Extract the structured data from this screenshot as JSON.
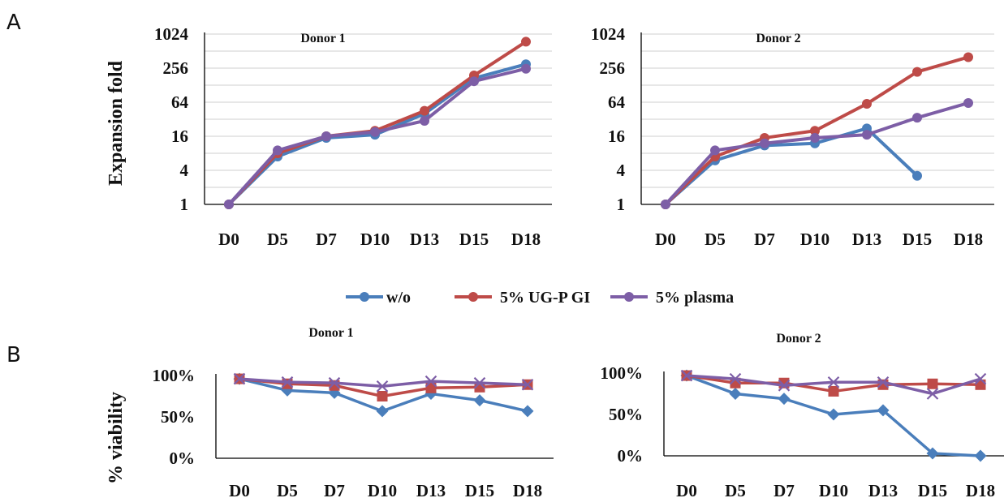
{
  "panel_labels": [
    "A",
    "B"
  ],
  "colors": {
    "w/o": "#4a7ebb",
    "5% UG-P GI": "#be4b48",
    "5% plasma": "#7d5ea6",
    "grid": "#cfcfcf"
  },
  "legend": [
    {
      "name": "w/o",
      "color": "#4a7ebb"
    },
    {
      "name": "5% UG-P GI",
      "color": "#be4b48"
    },
    {
      "name": "5% plasma",
      "color": "#7d5ea6"
    }
  ],
  "chart_data": [
    {
      "id": "A-donor1",
      "type": "line",
      "title": "Donor 1",
      "ylabel": "Expansion fold",
      "xlabel": "",
      "yscale": "log2",
      "categories": [
        "D0",
        "D5",
        "D7",
        "D10",
        "D13",
        "D15",
        "D18"
      ],
      "yticks": [
        1,
        4,
        16,
        64,
        256,
        1024
      ],
      "ytick_labels": [
        "1",
        "4",
        "16",
        "64",
        "256",
        "1024"
      ],
      "ylim": [
        1,
        1024
      ],
      "grid": true,
      "marker": "circle",
      "series": [
        {
          "name": "w/o",
          "values": [
            1,
            7,
            15,
            17,
            40,
            170,
            300
          ]
        },
        {
          "name": "5% UG-P GI",
          "values": [
            1,
            8,
            16,
            20,
            45,
            190,
            750
          ]
        },
        {
          "name": "5% plasma",
          "values": [
            1,
            9,
            16,
            19,
            30,
            150,
            250
          ]
        }
      ]
    },
    {
      "id": "A-donor2",
      "type": "line",
      "title": "Donor 2",
      "ylabel": "",
      "xlabel": "",
      "yscale": "log2",
      "categories": [
        "D0",
        "D5",
        "D7",
        "D10",
        "D13",
        "D15",
        "D18"
      ],
      "yticks": [
        1,
        4,
        16,
        64,
        256,
        1024
      ],
      "ytick_labels": [
        "1",
        "4",
        "16",
        "64",
        "256",
        "1024"
      ],
      "ylim": [
        1,
        1024
      ],
      "grid": true,
      "marker": "circle",
      "series": [
        {
          "name": "w/o",
          "values": [
            1,
            6,
            11,
            12,
            22,
            3.2,
            null
          ]
        },
        {
          "name": "5% UG-P GI",
          "values": [
            1,
            7,
            15,
            20,
            60,
            220,
            400
          ]
        },
        {
          "name": "5% plasma",
          "values": [
            1,
            9,
            12,
            15,
            17,
            34,
            62
          ]
        }
      ]
    },
    {
      "id": "B-donor1",
      "type": "line",
      "title": "Donor 1",
      "ylabel": "% viability",
      "xlabel": "",
      "categories": [
        "D0",
        "D5",
        "D7",
        "D10",
        "D13",
        "D15",
        "D18"
      ],
      "yticks": [
        0,
        50,
        100
      ],
      "ytick_labels": [
        "0%",
        "50%",
        "100%"
      ],
      "ylim": [
        0,
        100
      ],
      "grid": false,
      "series": [
        {
          "name": "w/o",
          "marker": "diamond",
          "values": [
            96,
            82,
            79,
            57,
            78,
            70,
            57
          ]
        },
        {
          "name": "5% UG-P GI",
          "marker": "square",
          "values": [
            96,
            90,
            88,
            75,
            85,
            86,
            89
          ]
        },
        {
          "name": "5% plasma",
          "marker": "x",
          "values": [
            96,
            92,
            91,
            87,
            93,
            91,
            89
          ]
        }
      ]
    },
    {
      "id": "B-donor2",
      "type": "line",
      "title": "Donor 2",
      "ylabel": "",
      "xlabel": "",
      "categories": [
        "D0",
        "D5",
        "D7",
        "D10",
        "D13",
        "D15",
        "D18"
      ],
      "yticks": [
        0,
        50,
        100
      ],
      "ytick_labels": [
        "0%",
        "50%",
        "100%"
      ],
      "ylim": [
        0,
        100
      ],
      "grid": false,
      "series": [
        {
          "name": "w/o",
          "marker": "diamond",
          "values": [
            97,
            75,
            69,
            50,
            55,
            3,
            0
          ]
        },
        {
          "name": "5% UG-P GI",
          "marker": "square",
          "values": [
            97,
            88,
            88,
            78,
            86,
            87,
            86
          ]
        },
        {
          "name": "5% plasma",
          "marker": "x",
          "values": [
            97,
            93,
            85,
            89,
            89,
            75,
            93
          ]
        }
      ]
    }
  ]
}
